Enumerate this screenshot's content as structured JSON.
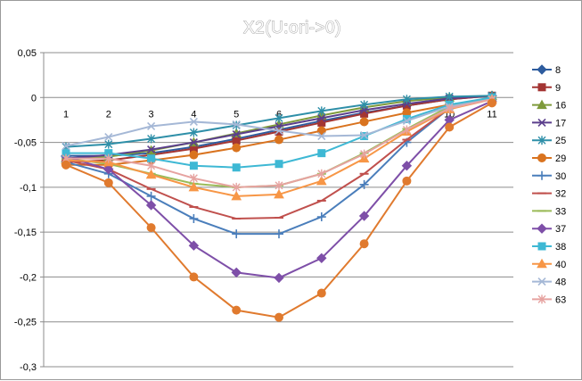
{
  "chart_data": {
    "type": "line",
    "title": "X2(U:ori->0)",
    "xlabel": "",
    "ylabel": "",
    "x": [
      1,
      2,
      3,
      4,
      5,
      6,
      7,
      8,
      9,
      10,
      11
    ],
    "x_tick_labels": [
      "1",
      "2",
      "3",
      "4",
      "5",
      "6",
      "7",
      "8",
      "9",
      "10",
      "11"
    ],
    "ylim": [
      -0.3,
      0.05
    ],
    "y_ticks": [
      0.05,
      0,
      -0.05,
      -0.1,
      -0.15,
      -0.2,
      -0.25,
      -0.3
    ],
    "y_tick_labels": [
      "0,05",
      "0",
      "-0,05",
      "-0,1",
      "-0,15",
      "-0,2",
      "-0,25",
      "-0,3"
    ],
    "grid": "horizontal",
    "legend_position": "right",
    "series": [
      {
        "name": "8",
        "color": "#2E5C9E",
        "marker": "diamond",
        "values": [
          -0.065,
          -0.065,
          -0.062,
          -0.055,
          -0.046,
          -0.036,
          -0.026,
          -0.017,
          -0.009,
          -0.002,
          0.002
        ]
      },
      {
        "name": "9",
        "color": "#A33533",
        "marker": "square",
        "values": [
          -0.072,
          -0.07,
          -0.064,
          -0.057,
          -0.048,
          -0.038,
          -0.028,
          -0.018,
          -0.009,
          -0.002,
          0.002
        ]
      },
      {
        "name": "16",
        "color": "#7E9A3A",
        "marker": "triangle",
        "values": [
          -0.068,
          -0.066,
          -0.059,
          -0.05,
          -0.04,
          -0.03,
          -0.02,
          -0.011,
          -0.004,
          0.0,
          0.002
        ]
      },
      {
        "name": "17",
        "color": "#5B3F8C",
        "marker": "x",
        "values": [
          -0.068,
          -0.064,
          -0.058,
          -0.05,
          -0.041,
          -0.032,
          -0.023,
          -0.014,
          -0.007,
          -0.001,
          0.002
        ]
      },
      {
        "name": "25",
        "color": "#2E8FA8",
        "marker": "star",
        "values": [
          -0.055,
          -0.052,
          -0.046,
          -0.039,
          -0.031,
          -0.023,
          -0.015,
          -0.008,
          -0.002,
          0.001,
          0.002
        ]
      },
      {
        "name": "29",
        "color": "#D9731F",
        "marker": "circle",
        "values": [
          -0.075,
          -0.075,
          -0.07,
          -0.064,
          -0.056,
          -0.047,
          -0.037,
          -0.027,
          -0.017,
          -0.008,
          -0.002
        ]
      },
      {
        "name": "30",
        "color": "#4A7EBB",
        "marker": "plus",
        "values": [
          -0.072,
          -0.085,
          -0.11,
          -0.135,
          -0.152,
          -0.152,
          -0.133,
          -0.097,
          -0.05,
          -0.012,
          0.001
        ]
      },
      {
        "name": "32",
        "color": "#C0504D",
        "marker": "dash",
        "values": [
          -0.07,
          -0.08,
          -0.102,
          -0.122,
          -0.135,
          -0.134,
          -0.115,
          -0.085,
          -0.047,
          -0.012,
          0.0
        ]
      },
      {
        "name": "33",
        "color": "#9BBB59",
        "marker": "dash",
        "values": [
          -0.068,
          -0.074,
          -0.085,
          -0.096,
          -0.1,
          -0.098,
          -0.085,
          -0.062,
          -0.035,
          -0.01,
          0.0
        ]
      },
      {
        "name": "37",
        "color": "#7E4FA8",
        "marker": "diamond",
        "values": [
          -0.066,
          -0.08,
          -0.12,
          -0.165,
          -0.195,
          -0.201,
          -0.179,
          -0.132,
          -0.076,
          -0.025,
          -0.004
        ]
      },
      {
        "name": "38",
        "color": "#3EB8D4",
        "marker": "square",
        "values": [
          -0.062,
          -0.062,
          -0.068,
          -0.076,
          -0.078,
          -0.074,
          -0.062,
          -0.043,
          -0.024,
          -0.008,
          0.0
        ]
      },
      {
        "name": "40",
        "color": "#F79646",
        "marker": "triangle",
        "values": [
          -0.07,
          -0.072,
          -0.086,
          -0.1,
          -0.11,
          -0.108,
          -0.093,
          -0.068,
          -0.038,
          -0.013,
          -0.002
        ]
      },
      {
        "name": "48",
        "color": "#A5B8D6",
        "marker": "x",
        "values": [
          -0.054,
          -0.044,
          -0.032,
          -0.027,
          -0.03,
          -0.037,
          -0.043,
          -0.042,
          -0.026,
          -0.01,
          -0.002
        ]
      },
      {
        "name": "63",
        "color": "#E6A3A0",
        "marker": "star",
        "values": [
          -0.068,
          -0.068,
          -0.076,
          -0.09,
          -0.1,
          -0.098,
          -0.085,
          -0.063,
          -0.036,
          -0.012,
          -0.002
        ]
      },
      {
        "name": "",
        "color": "#E07A2E",
        "marker": "circle",
        "values": [
          -0.075,
          -0.095,
          -0.145,
          -0.2,
          -0.237,
          -0.245,
          -0.218,
          -0.163,
          -0.093,
          -0.033,
          -0.006
        ]
      }
    ]
  }
}
